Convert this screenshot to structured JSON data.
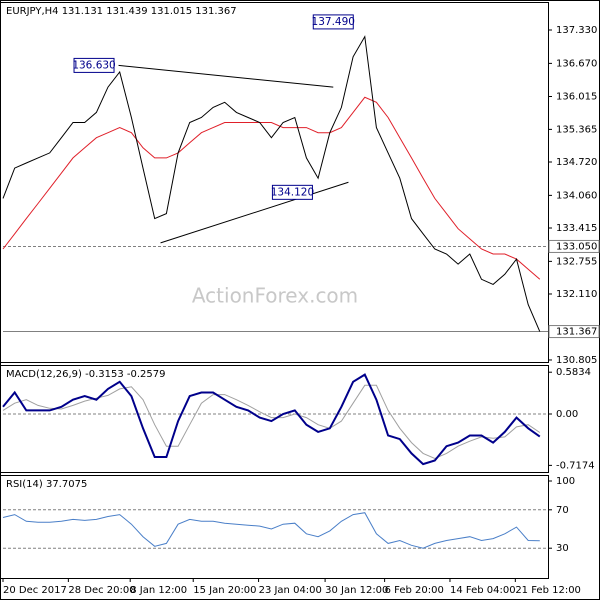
{
  "chart_data": [
    {
      "type": "line",
      "title": "EURJPY,H4 131.131 131.439 131.015 131.367",
      "watermark": "ActionForex.com",
      "xlim": [
        0,
        46.7
      ],
      "ylim": [
        130.765,
        137.864
      ],
      "yticks": [
        {
          "value": 137.33,
          "label": "137.330"
        },
        {
          "value": 136.67,
          "label": "136.670"
        },
        {
          "value": 136.015,
          "label": "136.015"
        },
        {
          "value": 135.365,
          "label": "135.365"
        },
        {
          "value": 134.72,
          "label": "134.720"
        },
        {
          "value": 134.06,
          "label": "134.060"
        },
        {
          "value": 133.415,
          "label": "133.415"
        },
        {
          "value": 132.755,
          "label": "132.755"
        },
        {
          "value": 132.11,
          "label": "132.110"
        },
        {
          "value": 130.805,
          "label": "130.805"
        }
      ],
      "series": [
        {
          "color": "#000000",
          "values": [
            134.0,
            134.6,
            134.7,
            134.8,
            134.9,
            135.2,
            135.5,
            135.5,
            135.7,
            136.2,
            136.5,
            135.6,
            134.6,
            133.6,
            133.7,
            134.9,
            135.5,
            135.6,
            135.8,
            135.9,
            135.7,
            135.6,
            135.5,
            135.2,
            135.5,
            135.6,
            134.8,
            134.4,
            135.3,
            135.8,
            136.8,
            137.2,
            135.4,
            134.9,
            134.4,
            133.6,
            133.3,
            133.0,
            132.9,
            132.7,
            132.9,
            132.4,
            132.3,
            132.5,
            132.8,
            131.9,
            131.367
          ]
        },
        {
          "color": "#e0202a",
          "values": [
            133.0,
            133.3,
            133.6,
            133.9,
            134.2,
            134.5,
            134.8,
            135.0,
            135.2,
            135.3,
            135.4,
            135.3,
            135.0,
            134.8,
            134.8,
            134.9,
            135.1,
            135.3,
            135.4,
            135.5,
            135.5,
            135.5,
            135.5,
            135.5,
            135.4,
            135.4,
            135.4,
            135.3,
            135.3,
            135.4,
            135.7,
            136.0,
            135.9,
            135.6,
            135.2,
            134.8,
            134.4,
            134.0,
            133.7,
            133.4,
            133.2,
            133.0,
            132.9,
            132.9,
            132.8,
            132.6,
            132.4
          ]
        }
      ],
      "annotations": [
        {
          "x": 28.3,
          "value": 137.49,
          "label": "137.490"
        },
        {
          "x": 7.8,
          "value": 136.63,
          "label": "136.630"
        },
        {
          "x": 24.8,
          "value": 134.12,
          "label": "134.120"
        }
      ],
      "trendlines": [
        {
          "x": [
            9.9,
            28.3
          ],
          "y": [
            136.63,
            136.2
          ]
        },
        {
          "x": [
            13.5,
            29.6
          ],
          "y": [
            133.12,
            134.32
          ]
        }
      ],
      "levels": [
        {
          "value": 133.05,
          "label": "133.050",
          "style": "dashed"
        },
        {
          "value": 131.367,
          "label": "131.367",
          "style": "solid"
        }
      ]
    },
    {
      "type": "line",
      "title": "MACD(12,26,9) -0.3153 -0.2579",
      "xlim": [
        0,
        46.7
      ],
      "ylim": [
        -0.81,
        0.67
      ],
      "yticks": [
        0.5834,
        {
          "value": 0,
          "label": "0.00"
        },
        -0.7174
      ],
      "levels": [
        {
          "value": 0,
          "style": "dashed"
        }
      ],
      "series": [
        {
          "color": "#00008b",
          "values": [
            0.1,
            0.3,
            0.05,
            0.05,
            0.05,
            0.1,
            0.2,
            0.25,
            0.2,
            0.35,
            0.45,
            0.25,
            -0.2,
            -0.6,
            -0.6,
            -0.1,
            0.25,
            0.3,
            0.3,
            0.2,
            0.1,
            0.05,
            -0.05,
            -0.1,
            0.0,
            0.05,
            -0.15,
            -0.25,
            -0.2,
            0.1,
            0.45,
            0.55,
            0.2,
            -0.3,
            -0.35,
            -0.55,
            -0.7,
            -0.65,
            -0.45,
            -0.4,
            -0.3,
            -0.3,
            -0.4,
            -0.25,
            -0.05,
            -0.2,
            -0.3153
          ]
        },
        {
          "color": "#a0a0a0",
          "values": [
            0.05,
            0.15,
            0.2,
            0.12,
            0.08,
            0.07,
            0.12,
            0.18,
            0.22,
            0.26,
            0.35,
            0.38,
            0.2,
            -0.15,
            -0.45,
            -0.45,
            -0.15,
            0.15,
            0.27,
            0.27,
            0.2,
            0.12,
            0.03,
            -0.05,
            -0.05,
            0.0,
            -0.05,
            -0.15,
            -0.2,
            -0.1,
            0.15,
            0.4,
            0.4,
            0.05,
            -0.2,
            -0.4,
            -0.55,
            -0.62,
            -0.55,
            -0.45,
            -0.38,
            -0.32,
            -0.34,
            -0.32,
            -0.18,
            -0.15,
            -0.2579
          ]
        }
      ]
    },
    {
      "type": "line",
      "title": "RSI(14) 37.7075",
      "xlim": [
        0,
        46.7
      ],
      "ylim": [
        0,
        100
      ],
      "yticks": [
        100,
        70,
        30
      ],
      "levels": [
        {
          "value": 70,
          "style": "dashed"
        },
        {
          "value": 30,
          "style": "dashed"
        }
      ],
      "series": [
        {
          "color": "#4a7fc8",
          "values": [
            62,
            65,
            58,
            57,
            57,
            58,
            60,
            59,
            60,
            63,
            65,
            55,
            42,
            32,
            35,
            55,
            60,
            58,
            58,
            56,
            55,
            54,
            53,
            50,
            55,
            56,
            45,
            42,
            48,
            58,
            65,
            67,
            45,
            35,
            38,
            33,
            30,
            35,
            38,
            40,
            42,
            38,
            40,
            45,
            52,
            38,
            37.7075
          ]
        }
      ],
      "xticks": [
        {
          "value": 0,
          "label": "20 Dec 2017"
        },
        {
          "value": 5.6,
          "label": "28 Dec 20:00"
        },
        {
          "value": 10.9,
          "label": "8 Jan 12:00"
        },
        {
          "value": 16.3,
          "label": "15 Jan 20:00"
        },
        {
          "value": 21.9,
          "label": "23 Jan 04:00"
        },
        {
          "value": 27.6,
          "label": "30 Jan 12:00"
        },
        {
          "value": 32.7,
          "label": "6 Feb 20:00"
        },
        {
          "value": 38.3,
          "label": "14 Feb 04:00"
        },
        {
          "value": 43.9,
          "label": "21 Feb 12:00"
        }
      ]
    }
  ]
}
